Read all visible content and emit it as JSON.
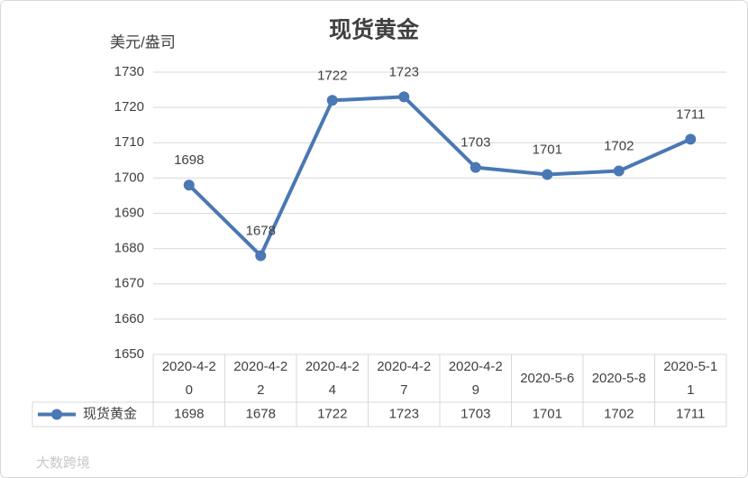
{
  "chart_data": {
    "type": "line",
    "title": "现货黄金",
    "y_label": "美元/盎司",
    "categories": [
      "2020-4-20",
      "2020-4-22",
      "2020-4-24",
      "2020-4-27",
      "2020-4-29",
      "2020-5-6",
      "2020-5-8",
      "2020-5-11"
    ],
    "series": [
      {
        "name": "现货黄金",
        "color": "#4a78b4",
        "values": [
          1698,
          1678,
          1722,
          1723,
          1703,
          1701,
          1702,
          1711
        ]
      }
    ],
    "ylim": [
      1650,
      1730
    ],
    "yticks": [
      1650,
      1660,
      1670,
      1680,
      1690,
      1700,
      1710,
      1720,
      1730
    ],
    "grid": true,
    "watermark": "大数跨境"
  }
}
